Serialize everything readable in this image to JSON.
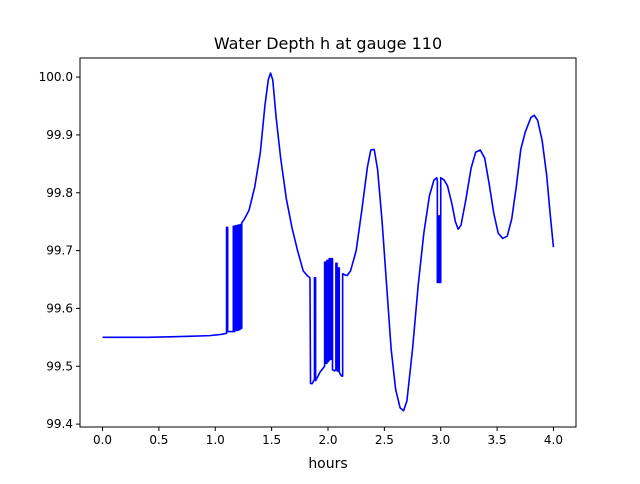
{
  "chart_data": {
    "type": "line",
    "title": "Water Depth h at gauge 110",
    "xlabel": "hours",
    "ylabel": "",
    "xlim": [
      -0.2,
      4.2
    ],
    "ylim": [
      99.395,
      100.033
    ],
    "grid": false,
    "legend": "none",
    "xticks": [
      0.0,
      0.5,
      1.0,
      1.5,
      2.0,
      2.5,
      3.0,
      3.5,
      4.0
    ],
    "xtick_labels": [
      "0.0",
      "0.5",
      "1.0",
      "1.5",
      "2.0",
      "2.5",
      "3.0",
      "3.5",
      "4.0"
    ],
    "yticks": [
      99.4,
      99.5,
      99.6,
      99.7,
      99.8,
      99.9,
      100.0
    ],
    "ytick_labels": [
      "99.4",
      "99.5",
      "99.6",
      "99.7",
      "99.8",
      "99.9",
      "100.0"
    ],
    "series": [
      {
        "color": "#0000ff",
        "points": [
          [
            0.0,
            99.55
          ],
          [
            0.2,
            99.55
          ],
          [
            0.4,
            99.55
          ],
          [
            0.6,
            99.551
          ],
          [
            0.8,
            99.552
          ],
          [
            0.95,
            99.553
          ],
          [
            1.05,
            99.555
          ],
          [
            1.1,
            99.557
          ],
          [
            1.1,
            99.74
          ],
          [
            1.11,
            99.74
          ],
          [
            1.11,
            99.56
          ],
          [
            1.15,
            99.56
          ],
          [
            1.16,
            99.56
          ],
          [
            1.16,
            99.742
          ],
          [
            1.17,
            99.742
          ],
          [
            1.17,
            99.56
          ],
          [
            1.18,
            99.562
          ],
          [
            1.18,
            99.743
          ],
          [
            1.19,
            99.743
          ],
          [
            1.19,
            99.562
          ],
          [
            1.2,
            99.562
          ],
          [
            1.2,
            99.744
          ],
          [
            1.21,
            99.744
          ],
          [
            1.21,
            99.563
          ],
          [
            1.22,
            99.564
          ],
          [
            1.22,
            99.745
          ],
          [
            1.23,
            99.745
          ],
          [
            1.23,
            99.565
          ],
          [
            1.235,
            99.566
          ],
          [
            1.235,
            99.748
          ],
          [
            1.26,
            99.755
          ],
          [
            1.3,
            99.77
          ],
          [
            1.35,
            99.81
          ],
          [
            1.4,
            99.87
          ],
          [
            1.44,
            99.95
          ],
          [
            1.47,
            99.995
          ],
          [
            1.49,
            100.007
          ],
          [
            1.51,
            99.995
          ],
          [
            1.54,
            99.93
          ],
          [
            1.58,
            99.86
          ],
          [
            1.63,
            99.79
          ],
          [
            1.68,
            99.74
          ],
          [
            1.73,
            99.7
          ],
          [
            1.78,
            99.665
          ],
          [
            1.82,
            99.656
          ],
          [
            1.84,
            99.653
          ],
          [
            1.845,
            99.47
          ],
          [
            1.86,
            99.47
          ],
          [
            1.88,
            99.478
          ],
          [
            1.88,
            99.653
          ],
          [
            1.89,
            99.653
          ],
          [
            1.89,
            99.475
          ],
          [
            1.93,
            99.49
          ],
          [
            1.97,
            99.5
          ],
          [
            1.97,
            99.68
          ],
          [
            1.98,
            99.68
          ],
          [
            1.98,
            99.505
          ],
          [
            1.99,
            99.505
          ],
          [
            1.99,
            99.683
          ],
          [
            2.0,
            99.683
          ],
          [
            2.0,
            99.508
          ],
          [
            2.01,
            99.51
          ],
          [
            2.01,
            99.686
          ],
          [
            2.02,
            99.686
          ],
          [
            2.02,
            99.512
          ],
          [
            2.03,
            99.512
          ],
          [
            2.03,
            99.686
          ],
          [
            2.04,
            99.686
          ],
          [
            2.04,
            99.494
          ],
          [
            2.06,
            99.492
          ],
          [
            2.07,
            99.495
          ],
          [
            2.07,
            99.678
          ],
          [
            2.08,
            99.678
          ],
          [
            2.08,
            99.492
          ],
          [
            2.09,
            99.492
          ],
          [
            2.09,
            99.67
          ],
          [
            2.1,
            99.67
          ],
          [
            2.1,
            99.49
          ],
          [
            2.11,
            99.486
          ],
          [
            2.12,
            99.483
          ],
          [
            2.13,
            99.483
          ],
          [
            2.13,
            99.66
          ],
          [
            2.15,
            99.658
          ],
          [
            2.17,
            99.657
          ],
          [
            2.2,
            99.665
          ],
          [
            2.25,
            99.7
          ],
          [
            2.3,
            99.77
          ],
          [
            2.35,
            99.845
          ],
          [
            2.38,
            99.874
          ],
          [
            2.41,
            99.875
          ],
          [
            2.44,
            99.84
          ],
          [
            2.48,
            99.75
          ],
          [
            2.52,
            99.64
          ],
          [
            2.56,
            99.53
          ],
          [
            2.6,
            99.46
          ],
          [
            2.64,
            99.428
          ],
          [
            2.67,
            99.423
          ],
          [
            2.7,
            99.44
          ],
          [
            2.75,
            99.53
          ],
          [
            2.8,
            99.64
          ],
          [
            2.85,
            99.73
          ],
          [
            2.9,
            99.795
          ],
          [
            2.94,
            99.822
          ],
          [
            2.965,
            99.826
          ],
          [
            2.97,
            99.82
          ],
          [
            2.97,
            99.645
          ],
          [
            2.98,
            99.645
          ],
          [
            2.98,
            99.76
          ],
          [
            2.99,
            99.76
          ],
          [
            2.99,
            99.645
          ],
          [
            3.0,
            99.645
          ],
          [
            3.0,
            99.826
          ],
          [
            3.03,
            99.822
          ],
          [
            3.06,
            99.812
          ],
          [
            3.1,
            99.78
          ],
          [
            3.13,
            99.75
          ],
          [
            3.155,
            99.737
          ],
          [
            3.18,
            99.744
          ],
          [
            3.22,
            99.785
          ],
          [
            3.27,
            99.843
          ],
          [
            3.31,
            99.87
          ],
          [
            3.35,
            99.874
          ],
          [
            3.39,
            99.86
          ],
          [
            3.43,
            99.815
          ],
          [
            3.47,
            99.765
          ],
          [
            3.51,
            99.73
          ],
          [
            3.55,
            99.721
          ],
          [
            3.59,
            99.725
          ],
          [
            3.63,
            99.755
          ],
          [
            3.67,
            99.81
          ],
          [
            3.71,
            99.875
          ],
          [
            3.75,
            99.905
          ],
          [
            3.8,
            99.93
          ],
          [
            3.83,
            99.934
          ],
          [
            3.86,
            99.925
          ],
          [
            3.9,
            99.89
          ],
          [
            3.94,
            99.83
          ],
          [
            3.97,
            99.765
          ],
          [
            4.0,
            99.706
          ]
        ]
      }
    ]
  }
}
